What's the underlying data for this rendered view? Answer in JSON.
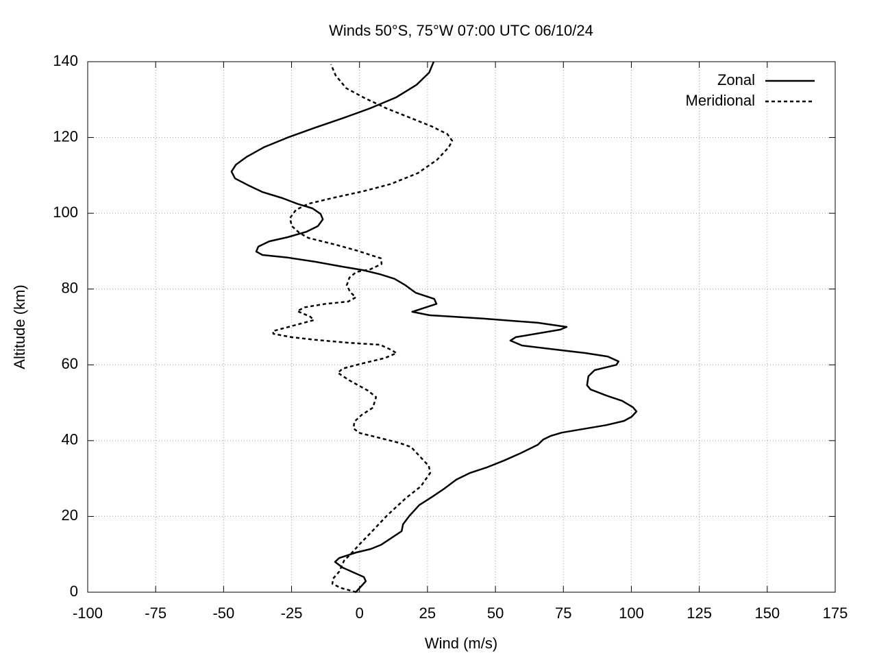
{
  "chart_data": {
    "type": "line",
    "title": "Winds 50°S, 75°W 07:00 UTC 06/10/24",
    "x_label": "Wind (m/s)",
    "y_label": "Altitude (km)",
    "xlim": [
      -100,
      175
    ],
    "xticks": [
      -100,
      -75,
      -50,
      -25,
      0,
      25,
      50,
      75,
      100,
      125,
      150,
      175
    ],
    "ylim": [
      0,
      140
    ],
    "yticks": [
      0,
      20,
      40,
      60,
      80,
      100,
      120,
      140
    ],
    "grid": true,
    "legend": "top-right",
    "series": [
      {
        "name": "Zonal",
        "color": "#000000",
        "dash": "solid",
        "x": [
          -1.4,
          2.3,
          1.6,
          -6.2,
          -9,
          -7.5,
          -1.2,
          4.1,
          7.9,
          15.5,
          16,
          18.3,
          22,
          26.6,
          31.1,
          35.6,
          40.7,
          46.7,
          53,
          59.3,
          65.6,
          67.6,
          70.2,
          74.4,
          90.8,
          97.3,
          100.1,
          101.9,
          100.6,
          96.6,
          90.8,
          85,
          83.7,
          84.2,
          86.5,
          94.5,
          95.3,
          91.3,
          83.2,
          72.7,
          59.8,
          55.5,
          57.5,
          73.9,
          76.2,
          65.6,
          45.4,
          25.7,
          19.4,
          28.3,
          27.5,
          20.7,
          16.9,
          12.9,
          7.6,
          1.3,
          -6.2,
          -16.3,
          -26.4,
          -35.7,
          -38,
          -37.2,
          -33.2,
          -26.4,
          -19.6,
          -15.3,
          -13.5,
          -14.3,
          -17.3,
          -22.9,
          -28.4,
          -35.7,
          -41,
          -45.8,
          -47.1,
          -45.5,
          -41.5,
          -35.2,
          -26.4,
          -16.3,
          -5.7,
          3.9,
          13.5,
          21,
          25.6,
          27.3
        ],
        "y": [
          0,
          2.9,
          4,
          6.5,
          8,
          9,
          10.5,
          11.4,
          12.5,
          16.1,
          17.9,
          20.1,
          23,
          25.1,
          27.3,
          29.7,
          31.5,
          32.9,
          34.7,
          36.7,
          38.9,
          40.3,
          41.2,
          42.1,
          44.1,
          45.2,
          46.3,
          47.7,
          48.8,
          50.5,
          51.9,
          53.5,
          54.6,
          57,
          58.6,
          60,
          60.9,
          62.2,
          63.1,
          64,
          65.1,
          66.4,
          67.3,
          69.3,
          70,
          71.1,
          72.2,
          73.1,
          74,
          76.1,
          77.4,
          79,
          81,
          82.7,
          83.9,
          85,
          85.9,
          87.2,
          88.3,
          89,
          89.9,
          91.2,
          92.6,
          93.7,
          95.1,
          96.6,
          98.4,
          99.8,
          101.3,
          102.5,
          104,
          105.6,
          107.4,
          109.2,
          111,
          112.8,
          114.9,
          117.4,
          120,
          122.6,
          125.2,
          127.7,
          130.6,
          133.9,
          137.1,
          140
        ]
      },
      {
        "name": "Meridional",
        "color": "#000000",
        "dash": "dashed",
        "x": [
          -1.2,
          -6.7,
          -10,
          -9.7,
          -7.5,
          -5.7,
          -3.2,
          0.1,
          4.4,
          10.2,
          17,
          22.5,
          26,
          25.5,
          22.5,
          19,
          14.7,
          6.4,
          0.1,
          -2.2,
          -1.9,
          0.8,
          4.9,
          6.1,
          3.1,
          -3.7,
          -8,
          -6.2,
          0.1,
          9.4,
          13.6,
          11.5,
          7.6,
          -3.7,
          -16.3,
          -25.1,
          -31.7,
          -31.9,
          -25.1,
          -16.8,
          -18.1,
          -22.9,
          -20.1,
          -12.5,
          -4.2,
          -1.4,
          -3.4,
          -4.7,
          -3.7,
          -1.2,
          3.9,
          8.1,
          7.9,
          -1.2,
          -8.8,
          -18.8,
          -22.1,
          -24.9,
          -25.6,
          -23.4,
          -18.8,
          -9.5,
          1.3,
          11.4,
          21.5,
          28.5,
          32.8,
          34.1,
          32.3,
          26.6,
          19,
          10.2,
          1.9,
          -4.9,
          -8.8,
          -10.5
        ],
        "y": [
          0,
          1.1,
          2.2,
          3.6,
          5.4,
          8.3,
          10.1,
          12.7,
          15.9,
          20.3,
          24.8,
          27.9,
          31.5,
          33.3,
          35.6,
          38.3,
          39.4,
          40.9,
          42,
          43.2,
          45,
          46.8,
          48.7,
          51.5,
          53.2,
          55.9,
          57.9,
          59,
          60.2,
          61.8,
          63.1,
          64,
          65.3,
          65.8,
          66.6,
          67.3,
          68.2,
          68.9,
          70.2,
          71.8,
          72.7,
          74.2,
          75.2,
          76.1,
          76.7,
          77.8,
          79.2,
          81,
          83,
          84.5,
          85.2,
          86.6,
          88.1,
          90.2,
          91.7,
          93.5,
          94.8,
          96.6,
          98.7,
          100.9,
          102.5,
          104.1,
          105.8,
          107.7,
          110.6,
          114.1,
          117.4,
          119.1,
          120.9,
          122.9,
          125.1,
          127.6,
          130.4,
          133,
          136.4,
          139.3
        ]
      }
    ]
  }
}
